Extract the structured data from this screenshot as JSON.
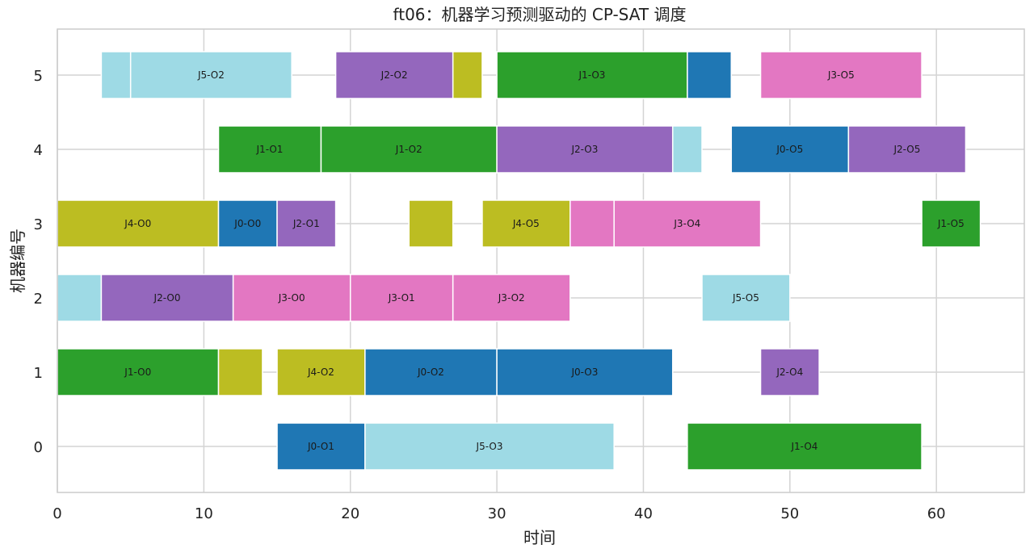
{
  "chart_data": {
    "type": "gantt",
    "title": "ft06：机器学习预测驱动的 CP-SAT 调度",
    "xlabel": "时间",
    "ylabel": "机器编号",
    "xlim": [
      0,
      66
    ],
    "xticks": [
      0,
      10,
      20,
      30,
      40,
      50,
      60
    ],
    "yticks": [
      0,
      1,
      2,
      3,
      4,
      5
    ],
    "grid": true,
    "job_colors": {
      "J0": "#1f77b4",
      "J1": "#2ca02c",
      "J2": "#9467bd",
      "J3": "#e377c2",
      "J4": "#bcbd22",
      "J5": "#9edae5"
    },
    "tasks": [
      {
        "machine": 5,
        "job": "J5",
        "start": 3,
        "end": 5,
        "label": ""
      },
      {
        "machine": 5,
        "job": "J5",
        "start": 5,
        "end": 16,
        "label": "J5-O2"
      },
      {
        "machine": 5,
        "job": "J2",
        "start": 19,
        "end": 27,
        "label": "J2-O2"
      },
      {
        "machine": 5,
        "job": "J4",
        "start": 27,
        "end": 29,
        "label": ""
      },
      {
        "machine": 5,
        "job": "J1",
        "start": 30,
        "end": 43,
        "label": "J1-O3"
      },
      {
        "machine": 5,
        "job": "J0",
        "start": 43,
        "end": 46,
        "label": ""
      },
      {
        "machine": 5,
        "job": "J3",
        "start": 48,
        "end": 59,
        "label": "J3-O5"
      },
      {
        "machine": 4,
        "job": "J1",
        "start": 11,
        "end": 18,
        "label": "J1-O1"
      },
      {
        "machine": 4,
        "job": "J1",
        "start": 18,
        "end": 30,
        "label": "J1-O2"
      },
      {
        "machine": 4,
        "job": "J2",
        "start": 30,
        "end": 42,
        "label": "J2-O3"
      },
      {
        "machine": 4,
        "job": "J5",
        "start": 42,
        "end": 44,
        "label": ""
      },
      {
        "machine": 4,
        "job": "J0",
        "start": 46,
        "end": 54,
        "label": "J0-O5"
      },
      {
        "machine": 4,
        "job": "J2",
        "start": 54,
        "end": 62,
        "label": "J2-O5"
      },
      {
        "machine": 3,
        "job": "J4",
        "start": 0,
        "end": 11,
        "label": "J4-O0"
      },
      {
        "machine": 3,
        "job": "J0",
        "start": 11,
        "end": 15,
        "label": "J0-O0"
      },
      {
        "machine": 3,
        "job": "J2",
        "start": 15,
        "end": 19,
        "label": "J2-O1"
      },
      {
        "machine": 3,
        "job": "J4",
        "start": 24,
        "end": 27,
        "label": ""
      },
      {
        "machine": 3,
        "job": "J4",
        "start": 29,
        "end": 35,
        "label": "J4-O5"
      },
      {
        "machine": 3,
        "job": "J3",
        "start": 35,
        "end": 38,
        "label": ""
      },
      {
        "machine": 3,
        "job": "J3",
        "start": 38,
        "end": 48,
        "label": "J3-O4"
      },
      {
        "machine": 3,
        "job": "J1",
        "start": 59,
        "end": 63,
        "label": "J1-O5"
      },
      {
        "machine": 2,
        "job": "J5",
        "start": 0,
        "end": 3,
        "label": ""
      },
      {
        "machine": 2,
        "job": "J2",
        "start": 3,
        "end": 12,
        "label": "J2-O0"
      },
      {
        "machine": 2,
        "job": "J3",
        "start": 12,
        "end": 20,
        "label": "J3-O0"
      },
      {
        "machine": 2,
        "job": "J3",
        "start": 20,
        "end": 27,
        "label": "J3-O1"
      },
      {
        "machine": 2,
        "job": "J3",
        "start": 27,
        "end": 35,
        "label": "J3-O2"
      },
      {
        "machine": 2,
        "job": "J5",
        "start": 44,
        "end": 50,
        "label": "J5-O5"
      },
      {
        "machine": 1,
        "job": "J1",
        "start": 0,
        "end": 11,
        "label": "J1-O0"
      },
      {
        "machine": 1,
        "job": "J4",
        "start": 11,
        "end": 14,
        "label": ""
      },
      {
        "machine": 1,
        "job": "J4",
        "start": 15,
        "end": 21,
        "label": "J4-O2"
      },
      {
        "machine": 1,
        "job": "J0",
        "start": 21,
        "end": 30,
        "label": "J0-O2"
      },
      {
        "machine": 1,
        "job": "J0",
        "start": 30,
        "end": 42,
        "label": "J0-O3"
      },
      {
        "machine": 1,
        "job": "J2",
        "start": 48,
        "end": 52,
        "label": "J2-O4"
      },
      {
        "machine": 0,
        "job": "J0",
        "start": 15,
        "end": 21,
        "label": "J0-O1"
      },
      {
        "machine": 0,
        "job": "J5",
        "start": 21,
        "end": 38,
        "label": "J5-O3"
      },
      {
        "machine": 0,
        "job": "J1",
        "start": 43,
        "end": 59,
        "label": "J1-O4"
      }
    ]
  }
}
